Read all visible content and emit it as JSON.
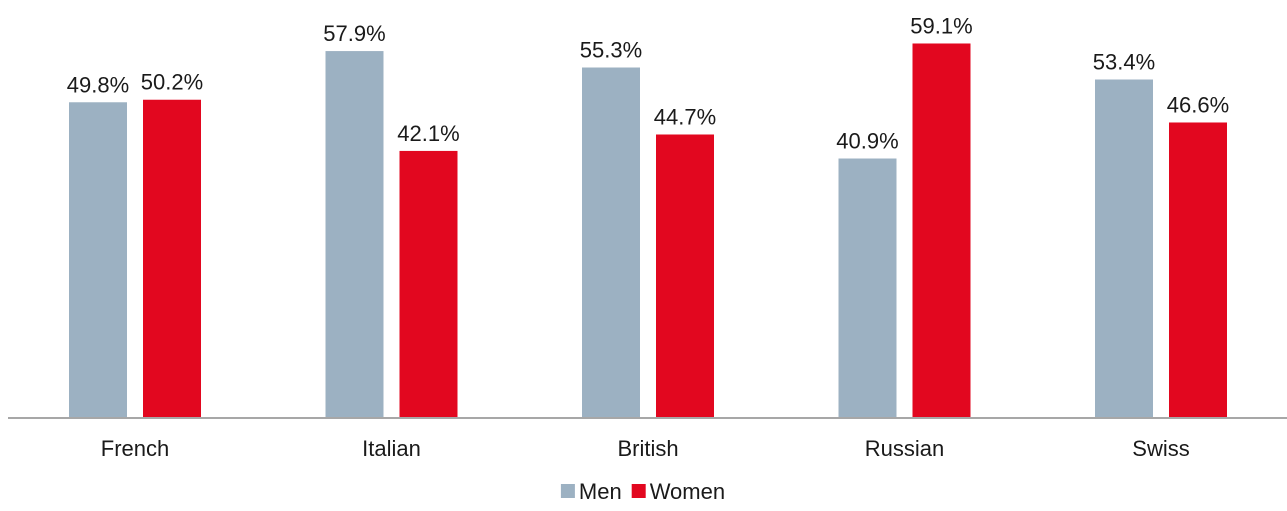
{
  "chart_data": {
    "type": "bar",
    "categories": [
      "French",
      "Italian",
      "British",
      "Russian",
      "Swiss"
    ],
    "series": [
      {
        "name": "Men",
        "values": [
          49.8,
          57.9,
          55.3,
          40.9,
          53.4
        ],
        "labels": [
          "49.8%",
          "57.9%",
          "55.3%",
          "40.9%",
          "53.4%"
        ],
        "color": "#9cb1c2"
      },
      {
        "name": "Women",
        "values": [
          50.2,
          42.1,
          44.7,
          59.1,
          46.6
        ],
        "labels": [
          "50.2%",
          "42.1%",
          "44.7%",
          "59.1%",
          "46.6%"
        ],
        "color": "#e2071f"
      }
    ],
    "ylim": [
      0,
      65
    ],
    "grid": false,
    "legend_position": "bottom-center"
  }
}
